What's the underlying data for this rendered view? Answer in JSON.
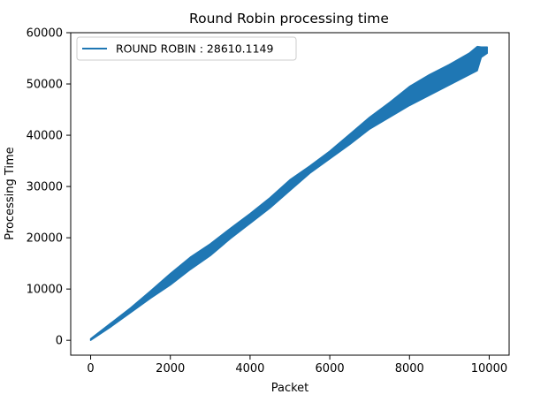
{
  "chart_data": {
    "type": "line",
    "title": "Round Robin processing time",
    "xlabel": "Packet",
    "ylabel": "Processing Time",
    "xlim": [
      -500,
      10500
    ],
    "ylim": [
      -2900,
      60000
    ],
    "x_ticks": [
      0,
      2000,
      4000,
      6000,
      8000,
      10000
    ],
    "y_ticks": [
      0,
      10000,
      20000,
      30000,
      40000,
      50000,
      60000
    ],
    "x_tick_labels": [
      "0",
      "2000",
      "4000",
      "6000",
      "8000",
      "10000"
    ],
    "y_tick_labels": [
      "0",
      "10000",
      "20000",
      "30000",
      "40000",
      "50000",
      "60000"
    ],
    "grid": false,
    "legend_position": "upper-left",
    "series": [
      {
        "name": "ROUND ROBIN : 28610.1149",
        "color": "#1f77b4",
        "x": [
          0,
          500,
          1000,
          1500,
          2000,
          2500,
          3000,
          3500,
          4000,
          4500,
          5000,
          5500,
          6000,
          6500,
          7000,
          7500,
          8000,
          8500,
          9000,
          9500,
          9700,
          9800,
          9950
        ],
        "y_min": [
          0,
          2600,
          5400,
          8200,
          10800,
          13800,
          16500,
          19800,
          22800,
          25800,
          29200,
          32600,
          35400,
          38200,
          41200,
          43500,
          45800,
          47800,
          49800,
          51800,
          52600,
          55200,
          56000
        ],
        "y_max": [
          300,
          3300,
          6300,
          9600,
          13000,
          16200,
          18800,
          21800,
          24700,
          27800,
          31300,
          34000,
          36900,
          40200,
          43500,
          46400,
          49500,
          51800,
          53800,
          56000,
          57300,
          57200,
          57200
        ]
      }
    ]
  }
}
